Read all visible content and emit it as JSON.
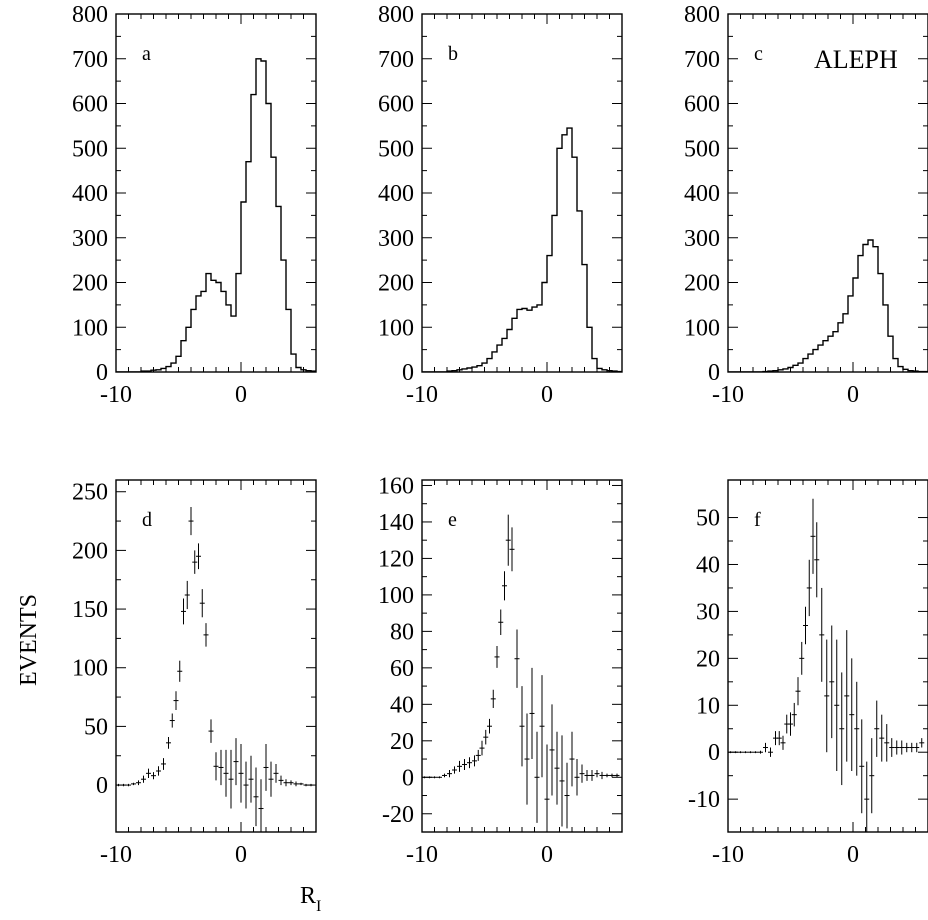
{
  "figure": {
    "experiment_label": "ALEPH",
    "y_axis_label": "EVENTS",
    "x_axis_label": {
      "main": "R",
      "subscript": "I"
    }
  },
  "chart_data": [
    {
      "id": "a",
      "panel_label": "a",
      "type": "histogram",
      "xlim": [
        -10,
        6
      ],
      "ylim": [
        0,
        800
      ],
      "x_ticks": [
        -10,
        0
      ],
      "y_ticks": [
        0,
        100,
        200,
        300,
        400,
        500,
        600,
        700,
        800
      ],
      "bin_width": 0.4,
      "x_start": -10,
      "values": [
        0,
        0,
        0,
        0,
        0,
        2,
        2,
        4,
        5,
        8,
        12,
        20,
        35,
        70,
        100,
        140,
        170,
        180,
        220,
        205,
        200,
        180,
        150,
        125,
        220,
        380,
        470,
        620,
        700,
        695,
        600,
        480,
        370,
        250,
        140,
        40,
        10,
        5,
        3,
        2
      ]
    },
    {
      "id": "b",
      "panel_label": "b",
      "type": "histogram",
      "xlim": [
        -10,
        6
      ],
      "ylim": [
        0,
        800
      ],
      "x_ticks": [
        -10,
        0
      ],
      "y_ticks": [
        0,
        100,
        200,
        300,
        400,
        500,
        600,
        700,
        800
      ],
      "bin_width": 0.4,
      "x_start": -10,
      "values": [
        0,
        0,
        0,
        0,
        0,
        2,
        3,
        5,
        7,
        9,
        11,
        14,
        20,
        30,
        45,
        60,
        75,
        95,
        120,
        140,
        142,
        138,
        145,
        150,
        200,
        260,
        350,
        500,
        530,
        545,
        480,
        360,
        240,
        100,
        30,
        8,
        5,
        3,
        2,
        1
      ]
    },
    {
      "id": "c",
      "panel_label": "c",
      "type": "histogram",
      "xlim": [
        -10,
        6
      ],
      "ylim": [
        0,
        800
      ],
      "x_ticks": [
        -10,
        0
      ],
      "y_ticks": [
        0,
        100,
        200,
        300,
        400,
        500,
        600,
        700,
        800
      ],
      "bin_width": 0.4,
      "x_start": -10,
      "values": [
        0,
        0,
        0,
        0,
        0,
        0,
        0,
        1,
        2,
        3,
        5,
        7,
        10,
        15,
        20,
        30,
        40,
        50,
        60,
        70,
        80,
        90,
        110,
        130,
        170,
        210,
        260,
        285,
        295,
        280,
        220,
        150,
        80,
        30,
        12,
        6,
        3,
        2,
        1,
        1
      ]
    },
    {
      "id": "d",
      "panel_label": "d",
      "type": "scatter",
      "xlim": [
        -10,
        6
      ],
      "ylim": [
        -40,
        260
      ],
      "x_ticks": [
        -10,
        0
      ],
      "y_ticks": [
        0,
        50,
        100,
        150,
        200,
        250
      ],
      "points": [
        {
          "x": -9.8,
          "y": 0,
          "err": 1
        },
        {
          "x": -9.4,
          "y": 0,
          "err": 1
        },
        {
          "x": -9.0,
          "y": 0,
          "err": 1
        },
        {
          "x": -8.6,
          "y": 1,
          "err": 1
        },
        {
          "x": -8.2,
          "y": 2,
          "err": 2
        },
        {
          "x": -7.8,
          "y": 5,
          "err": 3
        },
        {
          "x": -7.4,
          "y": 10,
          "err": 4
        },
        {
          "x": -7.0,
          "y": 8,
          "err": 3
        },
        {
          "x": -6.6,
          "y": 12,
          "err": 4
        },
        {
          "x": -6.2,
          "y": 18,
          "err": 5
        },
        {
          "x": -5.8,
          "y": 36,
          "err": 5
        },
        {
          "x": -5.5,
          "y": 55,
          "err": 6
        },
        {
          "x": -5.2,
          "y": 72,
          "err": 8
        },
        {
          "x": -4.9,
          "y": 97,
          "err": 9
        },
        {
          "x": -4.6,
          "y": 148,
          "err": 11
        },
        {
          "x": -4.3,
          "y": 162,
          "err": 12
        },
        {
          "x": -4.0,
          "y": 225,
          "err": 12
        },
        {
          "x": -3.7,
          "y": 190,
          "err": 10
        },
        {
          "x": -3.4,
          "y": 195,
          "err": 11
        },
        {
          "x": -3.1,
          "y": 155,
          "err": 12
        },
        {
          "x": -2.8,
          "y": 128,
          "err": 10
        },
        {
          "x": -2.4,
          "y": 46,
          "err": 10
        },
        {
          "x": -2.0,
          "y": 16,
          "err": 12
        },
        {
          "x": -1.6,
          "y": 15,
          "err": 15
        },
        {
          "x": -1.2,
          "y": 10,
          "err": 20
        },
        {
          "x": -0.8,
          "y": 5,
          "err": 25
        },
        {
          "x": -0.4,
          "y": 20,
          "err": 20
        },
        {
          "x": 0.0,
          "y": 10,
          "err": 25
        },
        {
          "x": 0.4,
          "y": 0,
          "err": 20
        },
        {
          "x": 0.8,
          "y": 5,
          "err": 20
        },
        {
          "x": 1.2,
          "y": -10,
          "err": 25
        },
        {
          "x": 1.6,
          "y": -20,
          "err": 25
        },
        {
          "x": 2.0,
          "y": 15,
          "err": 20
        },
        {
          "x": 2.4,
          "y": 5,
          "err": 15
        },
        {
          "x": 2.8,
          "y": 10,
          "err": 8
        },
        {
          "x": 3.2,
          "y": 4,
          "err": 4
        },
        {
          "x": 3.6,
          "y": 2,
          "err": 3
        },
        {
          "x": 4.0,
          "y": 2,
          "err": 2
        },
        {
          "x": 4.4,
          "y": 1,
          "err": 2
        },
        {
          "x": 4.8,
          "y": 1,
          "err": 1
        },
        {
          "x": 5.2,
          "y": 0,
          "err": 1
        },
        {
          "x": 5.6,
          "y": 0,
          "err": 1
        }
      ]
    },
    {
      "id": "e",
      "panel_label": "e",
      "type": "scatter",
      "xlim": [
        -10,
        6
      ],
      "ylim": [
        -30,
        163
      ],
      "x_ticks": [
        -10,
        0
      ],
      "y_ticks": [
        -20,
        0,
        20,
        40,
        60,
        80,
        100,
        120,
        140,
        160
      ],
      "points": [
        {
          "x": -9.8,
          "y": 0,
          "err": 0.5
        },
        {
          "x": -9.4,
          "y": 0,
          "err": 0.5
        },
        {
          "x": -9.0,
          "y": 0,
          "err": 0.5
        },
        {
          "x": -8.6,
          "y": 0,
          "err": 0.5
        },
        {
          "x": -8.2,
          "y": 1,
          "err": 1
        },
        {
          "x": -7.8,
          "y": 2,
          "err": 2
        },
        {
          "x": -7.4,
          "y": 4,
          "err": 2
        },
        {
          "x": -7.0,
          "y": 6,
          "err": 3
        },
        {
          "x": -6.6,
          "y": 7,
          "err": 3
        },
        {
          "x": -6.2,
          "y": 8,
          "err": 3
        },
        {
          "x": -5.8,
          "y": 9,
          "err": 3
        },
        {
          "x": -5.5,
          "y": 12,
          "err": 3
        },
        {
          "x": -5.2,
          "y": 16,
          "err": 4
        },
        {
          "x": -4.9,
          "y": 22,
          "err": 4
        },
        {
          "x": -4.6,
          "y": 28,
          "err": 4
        },
        {
          "x": -4.3,
          "y": 43,
          "err": 5
        },
        {
          "x": -4.0,
          "y": 66,
          "err": 6
        },
        {
          "x": -3.7,
          "y": 85,
          "err": 7
        },
        {
          "x": -3.4,
          "y": 105,
          "err": 8
        },
        {
          "x": -3.1,
          "y": 130,
          "err": 14
        },
        {
          "x": -2.8,
          "y": 125,
          "err": 12
        },
        {
          "x": -2.4,
          "y": 65,
          "err": 16
        },
        {
          "x": -2.0,
          "y": 28,
          "err": 22
        },
        {
          "x": -1.6,
          "y": 10,
          "err": 25
        },
        {
          "x": -1.2,
          "y": 35,
          "err": 25
        },
        {
          "x": -0.8,
          "y": 0,
          "err": 25
        },
        {
          "x": -0.4,
          "y": 28,
          "err": 28
        },
        {
          "x": 0.0,
          "y": -12,
          "err": 30
        },
        {
          "x": 0.4,
          "y": 15,
          "err": 25
        },
        {
          "x": 0.8,
          "y": 5,
          "err": 20
        },
        {
          "x": 1.2,
          "y": -2,
          "err": 25
        },
        {
          "x": 1.6,
          "y": -10,
          "err": 18
        },
        {
          "x": 2.0,
          "y": 10,
          "err": 15
        },
        {
          "x": 2.4,
          "y": 0,
          "err": 10
        },
        {
          "x": 2.8,
          "y": 2,
          "err": 5
        },
        {
          "x": 3.2,
          "y": 1,
          "err": 3
        },
        {
          "x": 3.6,
          "y": 1,
          "err": 3
        },
        {
          "x": 4.0,
          "y": 2,
          "err": 2
        },
        {
          "x": 4.4,
          "y": 1,
          "err": 2
        },
        {
          "x": 4.8,
          "y": 1,
          "err": 1
        },
        {
          "x": 5.2,
          "y": 1,
          "err": 1
        },
        {
          "x": 5.6,
          "y": 1,
          "err": 1
        }
      ]
    },
    {
      "id": "f",
      "panel_label": "f",
      "type": "scatter",
      "xlim": [
        -10,
        6
      ],
      "ylim": [
        -17,
        58
      ],
      "x_ticks": [
        -10,
        0
      ],
      "y_ticks": [
        -10,
        0,
        10,
        20,
        30,
        40,
        50
      ],
      "points": [
        {
          "x": -9.8,
          "y": 0,
          "err": 0.2
        },
        {
          "x": -9.4,
          "y": 0,
          "err": 0.2
        },
        {
          "x": -9.0,
          "y": 0,
          "err": 0.2
        },
        {
          "x": -8.6,
          "y": 0,
          "err": 0.2
        },
        {
          "x": -8.2,
          "y": 0,
          "err": 0.2
        },
        {
          "x": -7.8,
          "y": 0,
          "err": 0.2
        },
        {
          "x": -7.4,
          "y": 0,
          "err": 0.3
        },
        {
          "x": -7.0,
          "y": 1,
          "err": 1
        },
        {
          "x": -6.6,
          "y": 0,
          "err": 1
        },
        {
          "x": -6.2,
          "y": 3,
          "err": 1.5
        },
        {
          "x": -5.9,
          "y": 3,
          "err": 1.5
        },
        {
          "x": -5.6,
          "y": 2,
          "err": 1.5
        },
        {
          "x": -5.3,
          "y": 6,
          "err": 2
        },
        {
          "x": -5.0,
          "y": 6,
          "err": 2.5
        },
        {
          "x": -4.7,
          "y": 8,
          "err": 2.5
        },
        {
          "x": -4.4,
          "y": 13,
          "err": 3
        },
        {
          "x": -4.1,
          "y": 20,
          "err": 3.5
        },
        {
          "x": -3.8,
          "y": 27,
          "err": 4
        },
        {
          "x": -3.5,
          "y": 35,
          "err": 6
        },
        {
          "x": -3.2,
          "y": 46,
          "err": 8
        },
        {
          "x": -2.9,
          "y": 41,
          "err": 8
        },
        {
          "x": -2.5,
          "y": 25,
          "err": 10
        },
        {
          "x": -2.1,
          "y": 12,
          "err": 12
        },
        {
          "x": -1.7,
          "y": 15,
          "err": 12
        },
        {
          "x": -1.3,
          "y": 10,
          "err": 14
        },
        {
          "x": -0.9,
          "y": 5,
          "err": 12
        },
        {
          "x": -0.5,
          "y": 12,
          "err": 14
        },
        {
          "x": -0.1,
          "y": 8,
          "err": 12
        },
        {
          "x": 0.3,
          "y": 5,
          "err": 10
        },
        {
          "x": 0.7,
          "y": -3,
          "err": 10
        },
        {
          "x": 1.1,
          "y": -10,
          "err": 8
        },
        {
          "x": 1.5,
          "y": -5,
          "err": 8
        },
        {
          "x": 1.9,
          "y": 5,
          "err": 6
        },
        {
          "x": 2.3,
          "y": 3,
          "err": 5
        },
        {
          "x": 2.7,
          "y": 2,
          "err": 4
        },
        {
          "x": 3.1,
          "y": 1,
          "err": 2
        },
        {
          "x": 3.5,
          "y": 1,
          "err": 1.5
        },
        {
          "x": 3.9,
          "y": 1,
          "err": 1.5
        },
        {
          "x": 4.3,
          "y": 1,
          "err": 1
        },
        {
          "x": 4.7,
          "y": 1,
          "err": 1
        },
        {
          "x": 5.1,
          "y": 1,
          "err": 1
        },
        {
          "x": 5.5,
          "y": 2,
          "err": 1
        }
      ]
    }
  ]
}
